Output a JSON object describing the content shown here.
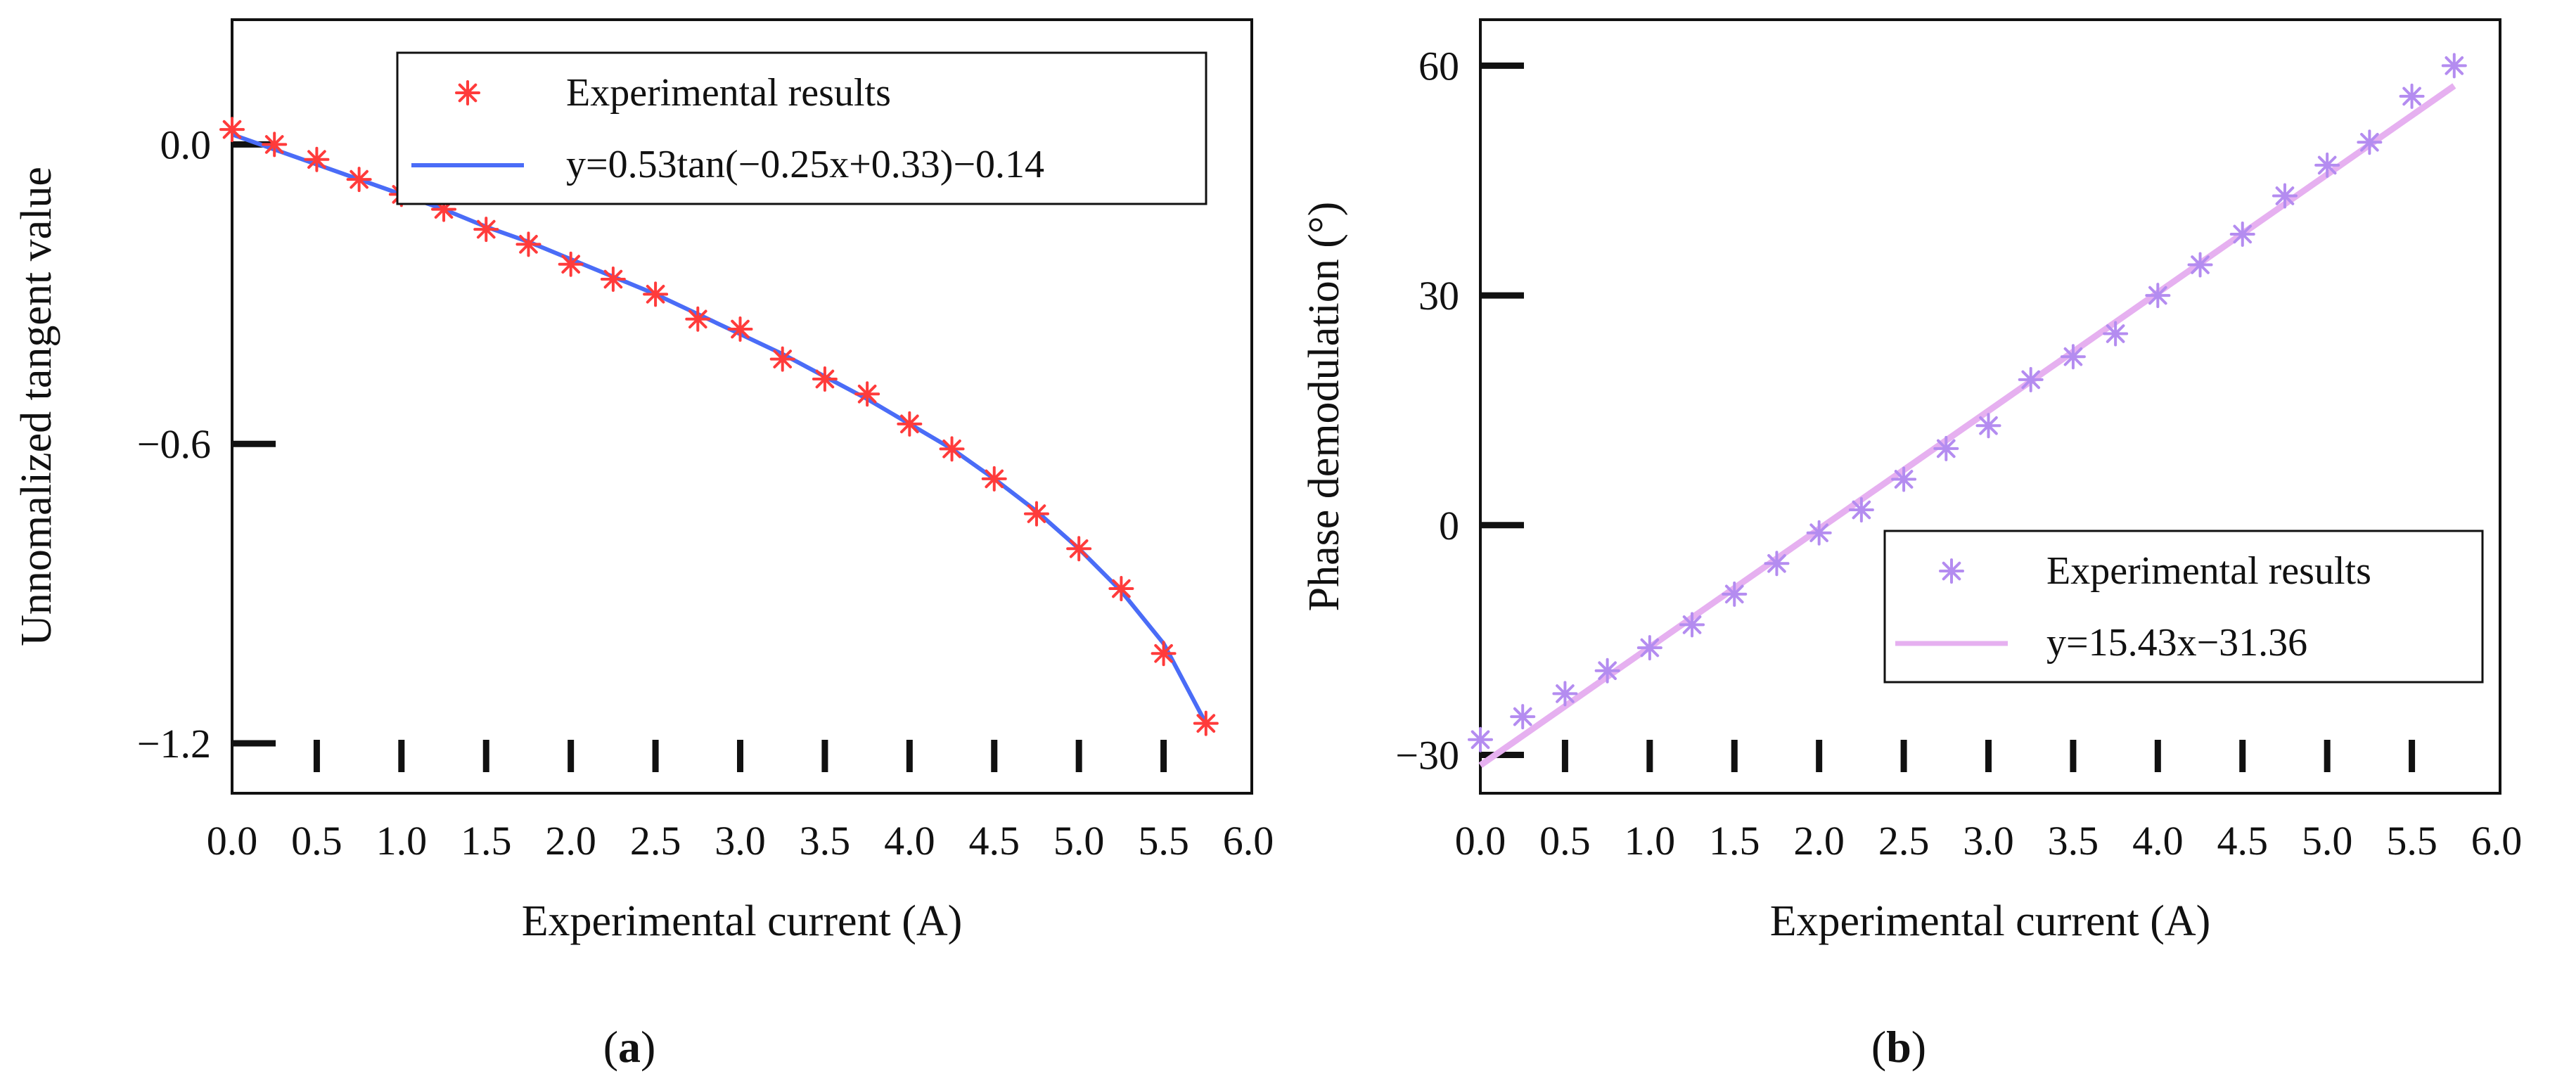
{
  "chart_data": [
    {
      "id": "a",
      "type": "line",
      "panel_label": "a",
      "xlabel": "Experimental current (A)",
      "ylabel": "Unnomalized tangent value",
      "xlim": [
        0.0,
        6.0
      ],
      "ylim": [
        -1.3,
        0.25
      ],
      "xticks": [
        0.0,
        0.5,
        1.0,
        1.5,
        2.0,
        2.5,
        3.0,
        3.5,
        4.0,
        4.5,
        5.0,
        5.5,
        6.0
      ],
      "xtick_labels": [
        "0.0",
        "0.5",
        "1.0",
        "1.5",
        "2.0",
        "2.5",
        "3.0",
        "3.5",
        "4.0",
        "4.5",
        "5.0",
        "5.5",
        "6.0"
      ],
      "yticks": [
        0.0,
        -0.6,
        -1.2
      ],
      "ytick_labels": [
        "0.0",
        "−0.6",
        "−1.2"
      ],
      "legend": {
        "position": "top-right",
        "entries": [
          "Experimental results",
          "y=0.53tan(−0.25x+0.33)−0.14"
        ]
      },
      "series": [
        {
          "name": "Experimental results",
          "kind": "scatter",
          "marker": "asterisk",
          "color": "#ff3b3b",
          "x": [
            0.0,
            0.25,
            0.5,
            0.75,
            1.0,
            1.25,
            1.5,
            1.75,
            2.0,
            2.25,
            2.5,
            2.75,
            3.0,
            3.25,
            3.5,
            3.75,
            4.0,
            4.25,
            4.5,
            4.75,
            5.0,
            5.25,
            5.5,
            5.75
          ],
          "y": [
            0.03,
            0.0,
            -0.03,
            -0.07,
            -0.1,
            -0.13,
            -0.17,
            -0.2,
            -0.24,
            -0.27,
            -0.3,
            -0.35,
            -0.37,
            -0.43,
            -0.47,
            -0.5,
            -0.56,
            -0.61,
            -0.67,
            -0.74,
            -0.81,
            -0.89,
            -1.02,
            -1.16
          ]
        },
        {
          "name": "y=0.53tan(−0.25x+0.33)−0.14",
          "kind": "line",
          "color": "#4a6cf7",
          "x": [
            0.0,
            0.25,
            0.5,
            0.75,
            1.0,
            1.25,
            1.5,
            1.75,
            2.0,
            2.25,
            2.5,
            2.75,
            3.0,
            3.25,
            3.5,
            3.75,
            4.0,
            4.25,
            4.5,
            4.75,
            5.0,
            5.25,
            5.5,
            5.75
          ],
          "y": [
            0.02,
            -0.01,
            -0.04,
            -0.07,
            -0.1,
            -0.13,
            -0.165,
            -0.195,
            -0.23,
            -0.265,
            -0.3,
            -0.34,
            -0.38,
            -0.42,
            -0.465,
            -0.51,
            -0.56,
            -0.61,
            -0.67,
            -0.735,
            -0.81,
            -0.895,
            -1.0,
            -1.16
          ]
        }
      ]
    },
    {
      "id": "b",
      "type": "line",
      "panel_label": "b",
      "xlabel": "Experimental current (A)",
      "ylabel": "Phase demodulation (°)",
      "xlim": [
        0.0,
        6.0
      ],
      "ylim": [
        -35,
        66
      ],
      "xticks": [
        0.0,
        0.5,
        1.0,
        1.5,
        2.0,
        2.5,
        3.0,
        3.5,
        4.0,
        4.5,
        5.0,
        5.5,
        6.0
      ],
      "xtick_labels": [
        "0.0",
        "0.5",
        "1.0",
        "1.5",
        "2.0",
        "2.5",
        "3.0",
        "3.5",
        "4.0",
        "4.5",
        "5.0",
        "5.5",
        "6.0"
      ],
      "yticks": [
        60,
        30,
        0,
        -30
      ],
      "ytick_labels": [
        "60",
        "30",
        "0",
        "−30"
      ],
      "legend": {
        "position": "lower-right",
        "entries": [
          "Experimental results",
          "y=15.43x−31.36"
        ]
      },
      "series": [
        {
          "name": "Experimental results",
          "kind": "scatter",
          "marker": "asterisk",
          "color": "#b48cf0",
          "x": [
            0.0,
            0.25,
            0.5,
            0.75,
            1.0,
            1.25,
            1.5,
            1.75,
            2.0,
            2.25,
            2.5,
            2.75,
            3.0,
            3.25,
            3.5,
            3.75,
            4.0,
            4.25,
            4.5,
            4.75,
            5.0,
            5.25,
            5.5,
            5.75
          ],
          "y": [
            -28,
            -25,
            -22,
            -19,
            -16,
            -13,
            -9,
            -5,
            -1,
            2,
            6,
            10,
            13,
            19,
            22,
            25,
            30,
            34,
            38,
            43,
            47,
            50,
            56,
            60
          ]
        },
        {
          "name": "y=15.43x−31.36",
          "kind": "line",
          "color": "#e6b0f0",
          "x": [
            0.0,
            5.75
          ],
          "y": [
            -31.36,
            57.36
          ]
        }
      ]
    }
  ]
}
